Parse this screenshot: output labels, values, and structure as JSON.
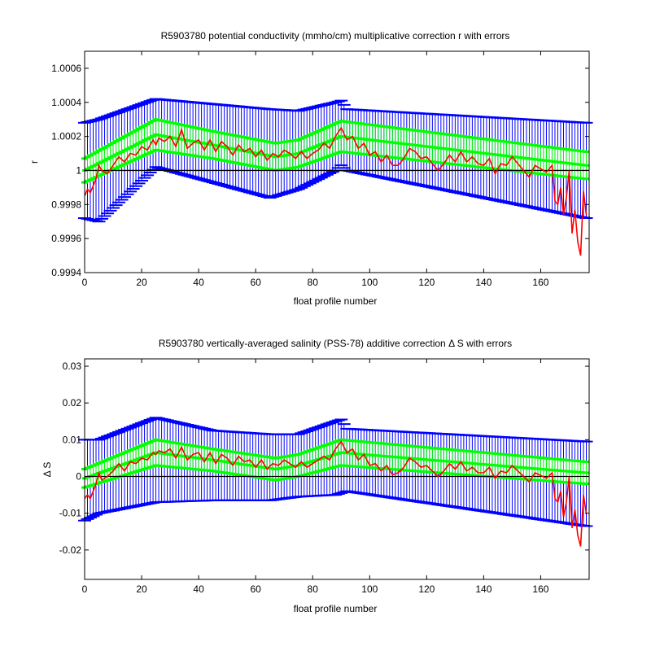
{
  "colors": {
    "error_bar": "#0000ff",
    "fit_band": "#00ff00",
    "correction": "#ff0000",
    "reference": "#000000"
  },
  "chart_data": [
    {
      "type": "line",
      "title": "R5903780 potential conductivity (mmho/cm) multiplicative correction r with errors",
      "xlabel": "float profile number",
      "ylabel": "r",
      "xlim": [
        0,
        177
      ],
      "ylim": [
        0.9994,
        1.0007
      ],
      "xticks": [
        0,
        20,
        40,
        60,
        80,
        100,
        120,
        140,
        160
      ],
      "xtick_labels": [
        "0",
        "20",
        "40",
        "60",
        "80",
        "100",
        "120",
        "140",
        "160"
      ],
      "yticks": [
        0.9994,
        0.9996,
        0.9998,
        1.0,
        1.0002,
        1.0004,
        1.0006
      ],
      "ytick_labels": [
        "0.9994",
        "0.9996",
        "0.9998",
        "1",
        "1.0002",
        "1.0004",
        "1.0006"
      ],
      "reference_line": 1.0,
      "grid": false,
      "series": [
        {
          "role": "error_bars",
          "x": [
            0,
            5,
            25,
            45,
            65,
            75,
            88,
            90,
            92,
            176
          ],
          "center": [
            1.0,
            1.0,
            1.00022,
            1.00016,
            1.0001,
            1.00012,
            1.0002,
            1.00022,
            1.00018,
            1.0
          ],
          "half_width": [
            0.00028,
            0.0003,
            0.0002,
            0.00023,
            0.00026,
            0.00023,
            0.0002,
            0.00019,
            0.00018,
            0.00028
          ]
        },
        {
          "role": "fit_band",
          "x": [
            0,
            25,
            45,
            67,
            75,
            90,
            176
          ],
          "center": [
            1.0,
            1.00021,
            1.00015,
            1.00008,
            1.0001,
            1.0002,
            1.00003
          ],
          "half_width": [
            7e-05,
            9e-05,
            8e-05,
            8e-05,
            8e-05,
            9e-05,
            8e-05
          ]
        },
        {
          "role": "correction",
          "x": [
            0,
            1,
            2,
            3,
            4,
            5,
            6,
            8,
            10,
            12,
            14,
            16,
            18,
            20,
            22,
            24,
            25,
            26,
            28,
            30,
            32,
            34,
            36,
            38,
            40,
            42,
            44,
            46,
            48,
            50,
            52,
            54,
            56,
            58,
            60,
            62,
            64,
            66,
            68,
            70,
            72,
            74,
            76,
            78,
            80,
            82,
            84,
            86,
            88,
            90,
            92,
            94,
            96,
            98,
            100,
            102,
            104,
            106,
            108,
            110,
            112,
            114,
            116,
            118,
            120,
            122,
            124,
            126,
            128,
            130,
            132,
            134,
            136,
            138,
            140,
            142,
            144,
            146,
            148,
            150,
            152,
            154,
            156,
            158,
            160,
            162,
            164,
            165,
            166,
            167,
            168,
            169,
            170,
            171,
            172,
            173,
            174,
            175,
            176
          ],
          "y": [
            0.99985,
            0.99989,
            0.99987,
            0.99991,
            0.99995,
            1.00003,
            1.0,
            0.99998,
            1.00003,
            1.00008,
            1.00005,
            1.0001,
            1.00009,
            1.00014,
            1.00012,
            1.00018,
            1.00015,
            1.00019,
            1.00017,
            1.0002,
            1.00014,
            1.00024,
            1.00013,
            1.00016,
            1.00018,
            1.00012,
            1.00018,
            1.00011,
            1.00017,
            1.00014,
            1.00009,
            1.00015,
            1.00011,
            1.00013,
            1.00008,
            1.00012,
            1.00006,
            1.0001,
            1.00008,
            1.00012,
            1.0001,
            1.00007,
            1.00011,
            1.00007,
            1.0001,
            1.00012,
            1.00016,
            1.00013,
            1.0002,
            1.00025,
            1.00018,
            1.0002,
            1.00013,
            1.00016,
            1.00009,
            1.00011,
            1.00005,
            1.00009,
            1.00003,
            1.00003,
            1.00007,
            1.00013,
            1.00011,
            1.00007,
            1.00008,
            1.00004,
            1.0,
            1.00004,
            1.00009,
            1.00005,
            1.00011,
            1.00005,
            1.00008,
            1.00004,
            1.00003,
            1.00007,
            0.99998,
            1.00004,
            1.00003,
            1.00008,
            1.00004,
            1.0,
            0.99996,
            1.00003,
            1.00001,
            0.99999,
            1.00003,
            0.99982,
            0.9998,
            0.9999,
            0.99974,
            0.99984,
            1.0,
            0.99963,
            0.99977,
            0.99958,
            0.9995,
            0.99988,
            0.99974
          ]
        }
      ]
    },
    {
      "type": "line",
      "title": "R5903780 vertically-averaged salinity (PSS-78) additive correction Δ S with errors",
      "xlabel": "float profile number",
      "ylabel": "Δ S",
      "xlim": [
        0,
        177
      ],
      "ylim": [
        -0.028,
        0.032
      ],
      "xticks": [
        0,
        20,
        40,
        60,
        80,
        100,
        120,
        140,
        160
      ],
      "xtick_labels": [
        "0",
        "20",
        "40",
        "60",
        "80",
        "100",
        "120",
        "140",
        "160"
      ],
      "yticks": [
        -0.02,
        -0.01,
        0,
        0.01,
        0.02,
        0.03
      ],
      "ytick_labels": [
        "-0.02",
        "-0.01",
        "0",
        "0.01",
        "0.02",
        "0.03"
      ],
      "reference_line": 0,
      "grid": false,
      "series": [
        {
          "role": "error_bars",
          "x": [
            0,
            5,
            25,
            45,
            65,
            75,
            88,
            90,
            92,
            176
          ],
          "center": [
            -0.001,
            0.0,
            0.0045,
            0.003,
            0.0025,
            0.003,
            0.005,
            0.0055,
            0.0045,
            -0.002
          ],
          "half_width": [
            0.011,
            0.01,
            0.0115,
            0.0095,
            0.009,
            0.0085,
            0.01,
            0.01,
            0.0085,
            0.0115
          ]
        },
        {
          "role": "fit_band",
          "x": [
            0,
            25,
            45,
            67,
            75,
            90,
            176
          ],
          "center": [
            -0.0005,
            0.0065,
            0.0045,
            0.002,
            0.003,
            0.0065,
            0.001
          ],
          "half_width": [
            0.0025,
            0.0035,
            0.003,
            0.003,
            0.003,
            0.0035,
            0.003
          ]
        },
        {
          "role": "correction",
          "x": [
            0,
            1,
            2,
            3,
            4,
            5,
            6,
            8,
            10,
            12,
            14,
            16,
            18,
            20,
            22,
            24,
            25,
            26,
            28,
            30,
            32,
            34,
            36,
            38,
            40,
            42,
            44,
            46,
            48,
            50,
            52,
            54,
            56,
            58,
            60,
            62,
            64,
            66,
            68,
            70,
            72,
            74,
            76,
            78,
            80,
            82,
            84,
            86,
            88,
            90,
            92,
            94,
            96,
            98,
            100,
            102,
            104,
            106,
            108,
            110,
            112,
            114,
            116,
            118,
            120,
            122,
            124,
            126,
            128,
            130,
            132,
            134,
            136,
            138,
            140,
            142,
            144,
            146,
            148,
            150,
            152,
            154,
            156,
            158,
            160,
            162,
            164,
            165,
            166,
            167,
            168,
            169,
            170,
            171,
            172,
            173,
            174,
            175,
            176
          ],
          "y": [
            -0.006,
            -0.005,
            -0.006,
            -0.004,
            -0.002,
            0.001,
            -0.001,
            0.0,
            0.0015,
            0.0035,
            0.0015,
            0.004,
            0.0035,
            0.005,
            0.0045,
            0.0065,
            0.006,
            0.007,
            0.0065,
            0.0075,
            0.005,
            0.008,
            0.0045,
            0.006,
            0.0065,
            0.004,
            0.0065,
            0.0035,
            0.006,
            0.005,
            0.003,
            0.0055,
            0.004,
            0.0045,
            0.0025,
            0.0045,
            0.002,
            0.0035,
            0.003,
            0.0045,
            0.0035,
            0.0025,
            0.004,
            0.0025,
            0.0035,
            0.0045,
            0.0055,
            0.0045,
            0.0075,
            0.0095,
            0.0065,
            0.0075,
            0.0045,
            0.006,
            0.003,
            0.0035,
            0.0015,
            0.003,
            0.0005,
            0.001,
            0.0025,
            0.005,
            0.004,
            0.0025,
            0.003,
            0.0015,
            0.0,
            0.0015,
            0.0035,
            0.002,
            0.004,
            0.0015,
            0.0025,
            0.001,
            0.001,
            0.0025,
            -0.0005,
            0.0015,
            0.001,
            0.003,
            0.0015,
            0.0,
            -0.0015,
            0.001,
            0.0003,
            -0.0005,
            0.001,
            -0.006,
            -0.007,
            -0.004,
            -0.011,
            -0.007,
            0.0,
            -0.014,
            -0.009,
            -0.016,
            -0.019,
            -0.005,
            -0.01
          ]
        }
      ]
    }
  ]
}
